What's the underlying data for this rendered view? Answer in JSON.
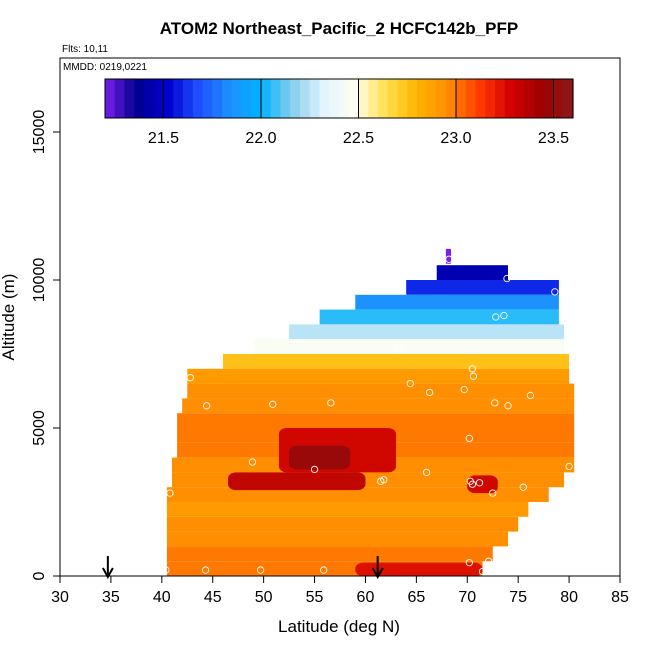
{
  "chart_data": {
    "type": "heatmap",
    "title": "ATOM2 Northeast_Pacific_2 HCFC142b_PFP",
    "flights_label": "Flts: 10,11",
    "dates_label": "MMDD: 0219,0221",
    "xlabel": "Latitude (deg N)",
    "ylabel": "Altitude (m)",
    "xlim": [
      30,
      85
    ],
    "ylim": [
      0,
      17500
    ],
    "x_ticks": [
      30,
      35,
      40,
      45,
      50,
      55,
      60,
      65,
      70,
      75,
      80,
      85
    ],
    "y_ticks": [
      0,
      5000,
      10000,
      15000
    ],
    "colorbar": {
      "min": 21.2,
      "max": 23.6,
      "ticks": [
        21.5,
        22.0,
        22.5,
        23.0,
        23.5
      ],
      "colors": [
        "#7a1ff0",
        "#00008c",
        "#0000d0",
        "#1e4fff",
        "#1e90ff",
        "#00b2ff",
        "#87ceeb",
        "#e0f4ff",
        "#fffff0",
        "#ffe14d",
        "#ffb300",
        "#ff8c00",
        "#ff3b00",
        "#d40000",
        "#9e0000",
        "#8b1a1a"
      ]
    },
    "arrows_latitude": [
      34.7,
      61.2
    ],
    "field": [
      {
        "alt": 10800,
        "lat_min": 67.9,
        "lat_max": 68.4,
        "value": 21.2
      },
      {
        "alt": 10250,
        "lat_min": 67.0,
        "lat_max": 74.0,
        "value": 21.45
      },
      {
        "alt": 9750,
        "lat_min": 64.0,
        "lat_max": 79.0,
        "value": 21.6
      },
      {
        "alt": 9250,
        "lat_min": 59.0,
        "lat_max": 79.0,
        "value": 21.85
      },
      {
        "alt": 8750,
        "lat_min": 55.5,
        "lat_max": 79.0,
        "value": 22.05
      },
      {
        "alt": 8250,
        "lat_min": 52.5,
        "lat_max": 79.5,
        "value": 22.25
      },
      {
        "alt": 7750,
        "lat_min": 49.0,
        "lat_max": 79.5,
        "value": 22.45
      },
      {
        "alt": 7250,
        "lat_min": 46.0,
        "lat_max": 80.0,
        "value": 22.75
      },
      {
        "alt": 6750,
        "lat_min": 42.5,
        "lat_max": 80.0,
        "value": 22.9
      },
      {
        "alt": 6250,
        "lat_min": 42.5,
        "lat_max": 80.5,
        "value": 22.95
      },
      {
        "alt": 5750,
        "lat_min": 42.0,
        "lat_max": 80.5,
        "value": 22.95
      },
      {
        "alt": 5250,
        "lat_min": 41.5,
        "lat_max": 80.5,
        "value": 23.0
      },
      {
        "alt": 4750,
        "lat_min": 41.5,
        "lat_max": 80.5,
        "value": 23.0
      },
      {
        "alt": 4250,
        "lat_min": 41.5,
        "lat_max": 80.5,
        "value": 23.0
      },
      {
        "alt": 3750,
        "lat_min": 41.0,
        "lat_max": 80.5,
        "value": 22.95
      },
      {
        "alt": 3250,
        "lat_min": 41.0,
        "lat_max": 79.5,
        "value": 22.95
      },
      {
        "alt": 2750,
        "lat_min": 40.5,
        "lat_max": 78.0,
        "value": 22.95
      },
      {
        "alt": 2250,
        "lat_min": 40.5,
        "lat_max": 76.0,
        "value": 22.9
      },
      {
        "alt": 1750,
        "lat_min": 40.5,
        "lat_max": 75.0,
        "value": 22.95
      },
      {
        "alt": 1250,
        "lat_min": 40.5,
        "lat_max": 74.0,
        "value": 22.95
      },
      {
        "alt": 750,
        "lat_min": 40.5,
        "lat_max": 72.5,
        "value": 23.0
      },
      {
        "alt": 250,
        "lat_min": 40.5,
        "lat_max": 71.5,
        "value": 23.0
      }
    ],
    "anomalies": [
      {
        "lat_min": 51.5,
        "lat_max": 63.0,
        "alt_min": 3500,
        "alt_max": 5000,
        "value": 23.3
      },
      {
        "lat_min": 52.5,
        "lat_max": 58.5,
        "alt_min": 3600,
        "alt_max": 4400,
        "value": 23.5
      },
      {
        "lat_min": 46.5,
        "lat_max": 60.0,
        "alt_min": 2900,
        "alt_max": 3500,
        "value": 23.35
      },
      {
        "lat_min": 59.0,
        "lat_max": 71.5,
        "alt_min": 0,
        "alt_max": 450,
        "value": 23.25
      },
      {
        "lat_min": 70.0,
        "lat_max": 73.0,
        "alt_min": 2800,
        "alt_max": 3400,
        "value": 23.3
      }
    ],
    "samples": [
      [
        68.2,
        10700
      ],
      [
        73.9,
        10050
      ],
      [
        78.6,
        9600
      ],
      [
        72.8,
        8750
      ],
      [
        73.6,
        8800
      ],
      [
        63.3,
        7650
      ],
      [
        70.5,
        7000
      ],
      [
        70.6,
        6750
      ],
      [
        64.4,
        6500
      ],
      [
        42.8,
        6700
      ],
      [
        66.3,
        6200
      ],
      [
        69.7,
        6300
      ],
      [
        76.2,
        6100
      ],
      [
        44.4,
        5750
      ],
      [
        50.9,
        5800
      ],
      [
        56.6,
        5850
      ],
      [
        72.7,
        5850
      ],
      [
        74.0,
        5750
      ],
      [
        70.2,
        4650
      ],
      [
        48.9,
        3850
      ],
      [
        55.0,
        3600
      ],
      [
        61.5,
        3200
      ],
      [
        61.8,
        3250
      ],
      [
        66.0,
        3500
      ],
      [
        70.3,
        3200
      ],
      [
        70.5,
        3100
      ],
      [
        71.2,
        3150
      ],
      [
        72.5,
        2800
      ],
      [
        75.5,
        3000
      ],
      [
        80.0,
        3700
      ],
      [
        40.8,
        2800
      ],
      [
        40.4,
        200
      ],
      [
        44.3,
        200
      ],
      [
        49.7,
        200
      ],
      [
        55.9,
        200
      ],
      [
        70.2,
        450
      ],
      [
        71.5,
        150
      ],
      [
        72.1,
        500
      ]
    ]
  }
}
